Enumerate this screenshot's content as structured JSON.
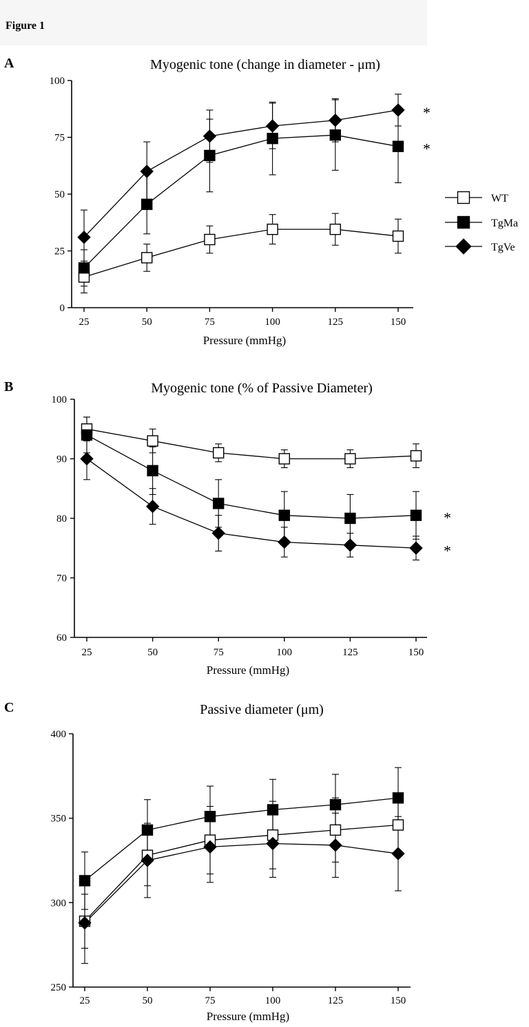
{
  "figure_label": "Figure 1",
  "legend": [
    {
      "label": "WT",
      "marker": "open-square"
    },
    {
      "label": "TgMa",
      "marker": "filled-square"
    },
    {
      "label": "TgVe",
      "marker": "filled-diamond"
    }
  ],
  "chart_data": [
    {
      "panel": "A",
      "type": "line",
      "title": "Myogenic tone (change in diameter - μm)",
      "xlabel": "Pressure (mmHg)",
      "ylabel": "",
      "x": [
        25,
        50,
        75,
        100,
        125,
        150
      ],
      "xticks": [
        "25",
        "50",
        "75",
        "100",
        "125",
        "150"
      ],
      "ylim": [
        0,
        100
      ],
      "yticks": [
        0,
        25,
        50,
        75,
        100
      ],
      "grid": false,
      "legend_position": "right",
      "series": [
        {
          "name": "WT",
          "marker": "open-square",
          "values": [
            13.5,
            22,
            30,
            34.5,
            34.5,
            31.5
          ],
          "errors": [
            7,
            6,
            6,
            6.5,
            7,
            7.5
          ]
        },
        {
          "name": "TgMa",
          "marker": "filled-square",
          "values": [
            17.5,
            45.5,
            67,
            74.5,
            76,
            71
          ],
          "errors": [
            8,
            13,
            16,
            16,
            15.5,
            16
          ]
        },
        {
          "name": "TgVe",
          "marker": "filled-diamond",
          "values": [
            31,
            60,
            75.5,
            80,
            82.5,
            87
          ],
          "errors": [
            12,
            13,
            11.5,
            10,
            9.5,
            7
          ]
        }
      ],
      "annotations": [
        {
          "text": "*",
          "series": "TgVe",
          "x": 150
        },
        {
          "text": "*",
          "series": "TgMa",
          "x": 150
        }
      ]
    },
    {
      "panel": "B",
      "type": "line",
      "title": "Myogenic tone (% of Passive Diameter)",
      "xlabel": "Pressure (mmHg)",
      "ylabel": "",
      "x": [
        25,
        50,
        75,
        100,
        125,
        150
      ],
      "xticks": [
        "25",
        "50",
        "75",
        "100",
        "125",
        "150"
      ],
      "ylim": [
        60,
        100
      ],
      "yticks": [
        60,
        70,
        80,
        90,
        100
      ],
      "grid": false,
      "series": [
        {
          "name": "WT",
          "marker": "open-square",
          "values": [
            95,
            93,
            91,
            90,
            90,
            90.5
          ],
          "errors": [
            2,
            2,
            1.5,
            1.5,
            1.5,
            2
          ]
        },
        {
          "name": "TgMa",
          "marker": "filled-square",
          "values": [
            94,
            88,
            82.5,
            80.5,
            80,
            80.5
          ],
          "errors": [
            3,
            4,
            4,
            4,
            4,
            4
          ]
        },
        {
          "name": "TgVe",
          "marker": "filled-diamond",
          "values": [
            90,
            82,
            77.5,
            76,
            75.5,
            75
          ],
          "errors": [
            3.5,
            3,
            3,
            2.5,
            2,
            2
          ]
        }
      ],
      "annotations": [
        {
          "text": "*",
          "series": "TgMa",
          "x": 150
        },
        {
          "text": "*",
          "series": "TgVe",
          "x": 150
        }
      ]
    },
    {
      "panel": "C",
      "type": "line",
      "title": "Passive diameter (μm)",
      "xlabel": "Pressure (mmHg)",
      "ylabel": "",
      "x": [
        25,
        50,
        75,
        100,
        125,
        150
      ],
      "xticks": [
        "25",
        "50",
        "75",
        "100",
        "125",
        "150"
      ],
      "ylim": [
        250,
        400
      ],
      "yticks": [
        250,
        300,
        350,
        400
      ],
      "grid": false,
      "series": [
        {
          "name": "WT",
          "marker": "open-square",
          "values": [
            289,
            328,
            337,
            340,
            343,
            346
          ],
          "errors": [
            16,
            18,
            20,
            20,
            19,
            18
          ]
        },
        {
          "name": "TgMa",
          "marker": "filled-square",
          "values": [
            313,
            343,
            351,
            355,
            358,
            362
          ],
          "errors": [
            17,
            18,
            18,
            18,
            18,
            18
          ]
        },
        {
          "name": "TgVe",
          "marker": "filled-diamond",
          "values": [
            288,
            325,
            333,
            335,
            334,
            329
          ],
          "errors": [
            24,
            22,
            21,
            20,
            19,
            22
          ]
        }
      ],
      "annotations": []
    }
  ]
}
